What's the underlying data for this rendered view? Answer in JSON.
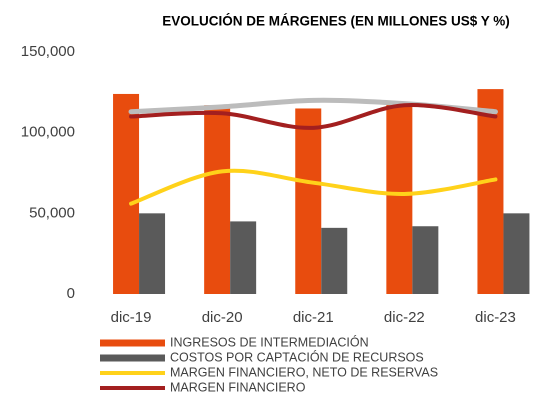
{
  "chart_data": {
    "type": "combo",
    "title": "EVOLUCIÓN DE MÁRGENES (EN MILLONES US$ Y %)",
    "categories": [
      "dic-19",
      "dic-20",
      "dic-21",
      "dic-22",
      "dic-23"
    ],
    "series": [
      {
        "name": "INGRESOS DE INTERMEDIACIÓN",
        "type": "bar",
        "color": "#e84c0e",
        "values": [
          124000,
          117000,
          115000,
          118000,
          127000
        ]
      },
      {
        "name": "COSTOS POR CAPTACIÓN DE RECURSOS",
        "type": "bar",
        "color": "#5a5a5a",
        "values": [
          50000,
          45000,
          41000,
          42000,
          50000
        ]
      },
      {
        "name": "MARGEN FINANCIERO, NETO DE RESERVAS",
        "type": "line",
        "color": "#ffd21a",
        "values": [
          56000,
          76000,
          69000,
          62000,
          71000
        ]
      },
      {
        "name": "MARGEN FINANCIERO",
        "type": "line",
        "color": "#a31f1f",
        "values": [
          110000,
          112000,
          103000,
          117000,
          110000
        ]
      },
      {
        "type": "line",
        "color": "#bcbcbc",
        "values": [
          113000,
          116000,
          120000,
          118000,
          113000
        ]
      }
    ],
    "ylim": [
      0,
      150000
    ],
    "yticks": [
      0,
      {
        "value": 50000,
        "label": "50,000"
      },
      {
        "value": 100000,
        "label": "100,000"
      },
      {
        "value": 150000,
        "label": "150,000"
      }
    ],
    "grid": false,
    "legend": "bottom"
  }
}
